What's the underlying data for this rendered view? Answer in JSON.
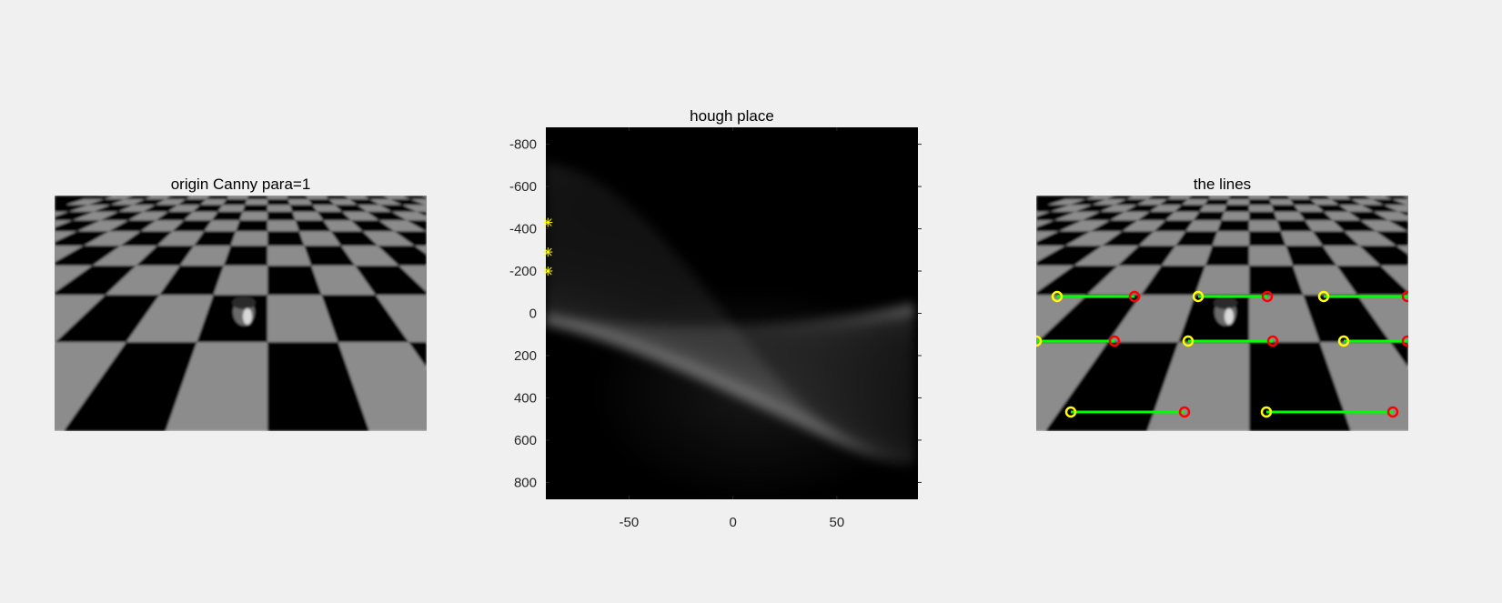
{
  "figure": {
    "left_title": "origin Canny para=1",
    "middle_title": "hough place",
    "right_title": "the lines"
  },
  "chart_data": [
    {
      "type": "heatmap",
      "title": "hough place",
      "xlabel": "",
      "ylabel": "",
      "xlim": [
        -90,
        89
      ],
      "ylim": [
        -880,
        880
      ],
      "y_reversed": true,
      "x_ticks": [
        -50,
        0,
        50
      ],
      "x_tick_labels": [
        "-50",
        "0",
        "50"
      ],
      "y_ticks": [
        -800,
        -600,
        -400,
        -200,
        0,
        200,
        400,
        600,
        800
      ],
      "y_tick_labels": [
        "-800",
        "-600",
        "-400",
        "-200",
        "0",
        "200",
        "400",
        "600",
        "800"
      ],
      "colormap": "gray",
      "peaks": [
        {
          "theta": -89,
          "rho": -430
        },
        {
          "theta": -89,
          "rho": -290
        },
        {
          "theta": -89,
          "rho": -200
        }
      ],
      "peak_marker_color": "#ffff00"
    },
    {
      "type": "line",
      "title": "the lines",
      "segment_color": "#00ff00",
      "start_marker_color": "#ffff00",
      "end_marker_color": "#ff0000",
      "image_size": [
        409,
        259
      ],
      "segments": [
        {
          "x1": 23,
          "y1": 111,
          "x2": 108,
          "y2": 111
        },
        {
          "x1": 178,
          "y1": 111,
          "x2": 254,
          "y2": 111
        },
        {
          "x1": 316,
          "y1": 111,
          "x2": 408,
          "y2": 111
        },
        {
          "x1": 0,
          "y1": 160,
          "x2": 86,
          "y2": 160
        },
        {
          "x1": 167,
          "y1": 160,
          "x2": 260,
          "y2": 160
        },
        {
          "x1": 338,
          "y1": 160,
          "x2": 408,
          "y2": 160
        },
        {
          "x1": 38,
          "y1": 238,
          "x2": 163,
          "y2": 238
        },
        {
          "x1": 253,
          "y1": 238,
          "x2": 392,
          "y2": 238
        }
      ]
    }
  ]
}
